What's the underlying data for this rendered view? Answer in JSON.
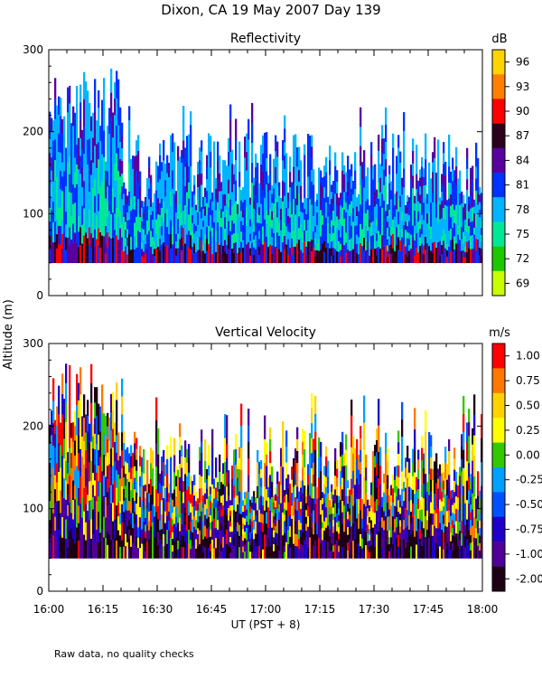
{
  "title": "Dixon, CA 19 May 2007  Day 139",
  "footnote": "Raw data, no quality checks",
  "shared_axes": {
    "ylabel": "Altitude (m)",
    "xlabel": "UT  (PST + 8)",
    "x_ticks": [
      "16:00",
      "16:15",
      "16:30",
      "16:45",
      "17:00",
      "17:15",
      "17:30",
      "17:45",
      "18:00"
    ],
    "y_ticks": [
      "0",
      "100",
      "200",
      "300"
    ]
  },
  "chart_data": [
    {
      "type": "heatmap",
      "title": "Reflectivity",
      "x_range": [
        "16:00",
        "18:00"
      ],
      "ylim": [
        0,
        300
      ],
      "colorbar": {
        "unit": "dB",
        "labels": [
          "96",
          "93",
          "90",
          "87",
          "84",
          "81",
          "78",
          "75",
          "72",
          "69"
        ],
        "colors": [
          "#ffd400",
          "#ff8000",
          "#ff0000",
          "#2a001a",
          "#5a00a0",
          "#0032ff",
          "#00b4ff",
          "#00e896",
          "#1ec800",
          "#c8ff00"
        ]
      },
      "data_floor_m": 40
    },
    {
      "type": "heatmap",
      "title": "Vertical Velocity",
      "x_range": [
        "16:00",
        "18:00"
      ],
      "ylim": [
        0,
        300
      ],
      "colorbar": {
        "unit": "m/s",
        "labels": [
          "1.00",
          "0.75",
          "0.50",
          "0.25",
          "0.00",
          "-0.25",
          "-0.50",
          "-0.75",
          "-1.00",
          "-2.00"
        ],
        "colors": [
          "#ff0000",
          "#ff7800",
          "#ffd200",
          "#ffff00",
          "#32c800",
          "#00a0ff",
          "#0050ff",
          "#1e00c8",
          "#500096",
          "#1e0014"
        ]
      },
      "data_floor_m": 40
    }
  ]
}
